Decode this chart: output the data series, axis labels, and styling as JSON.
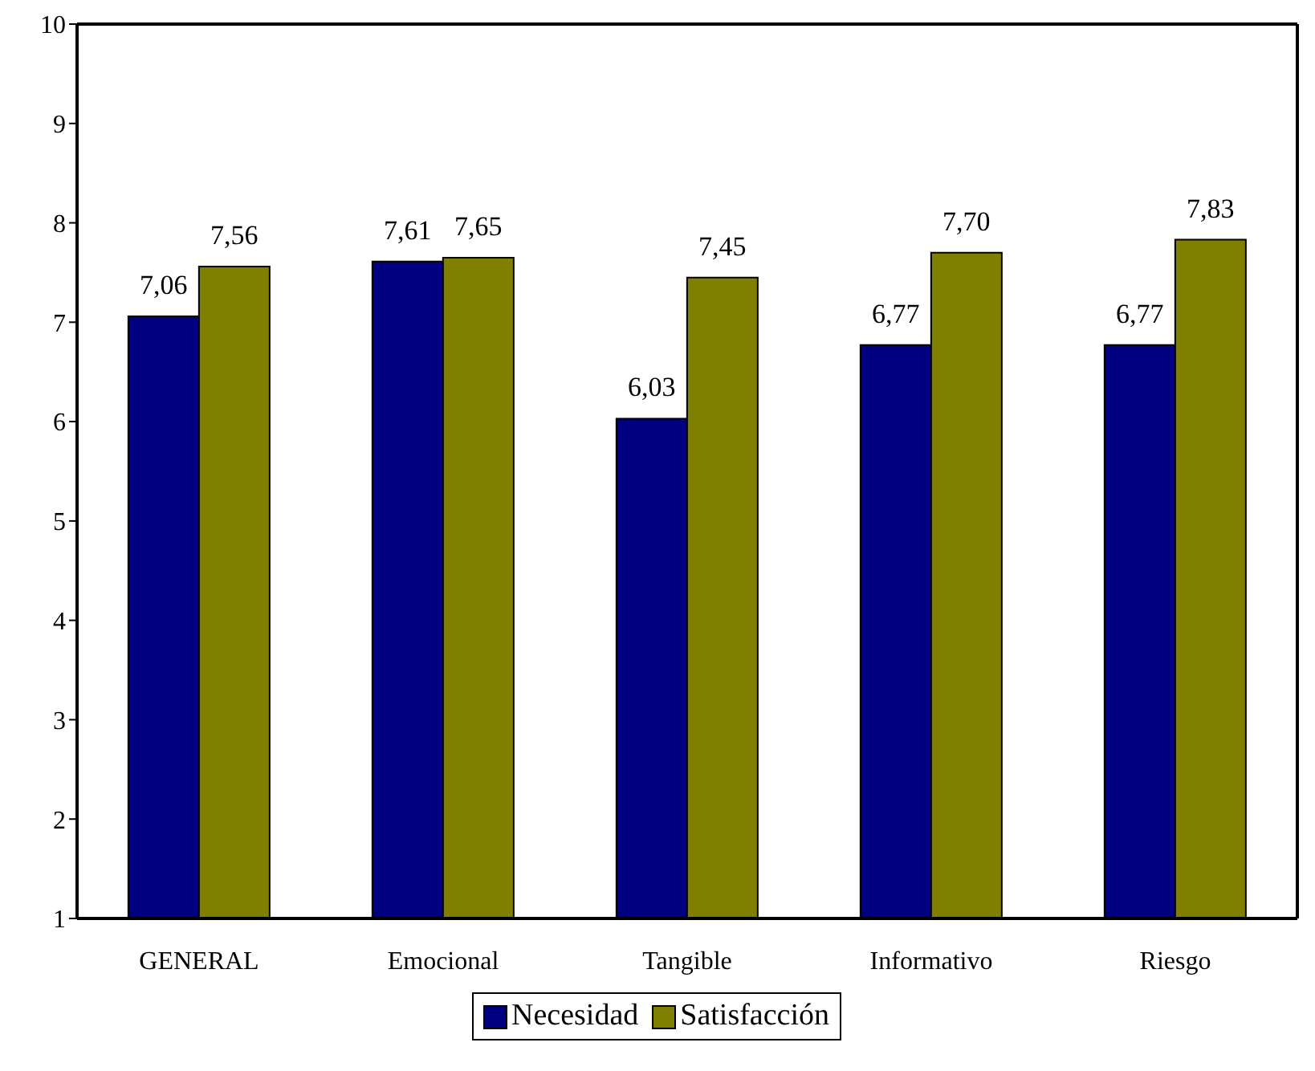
{
  "chart_data": {
    "type": "bar",
    "categories": [
      "GENERAL",
      "Emocional",
      "Tangible",
      "Informativo",
      "Riesgo"
    ],
    "series": [
      {
        "name": "Necesidad",
        "color": "#000080",
        "values": [
          7.06,
          7.61,
          6.03,
          6.77,
          6.77
        ],
        "value_labels": [
          "7,06",
          "7,61",
          "6,03",
          "6,77",
          "6,77"
        ]
      },
      {
        "name": "Satisfacción",
        "color": "#808000",
        "values": [
          7.56,
          7.65,
          7.45,
          7.7,
          7.83
        ],
        "value_labels": [
          "7,56",
          "7,65",
          "7,45",
          "7,70",
          "7,83"
        ]
      }
    ],
    "ylim": [
      1,
      10
    ],
    "yticks": [
      1,
      2,
      3,
      4,
      5,
      6,
      7,
      8,
      9,
      10
    ],
    "grid": false,
    "legend": "bottom"
  }
}
